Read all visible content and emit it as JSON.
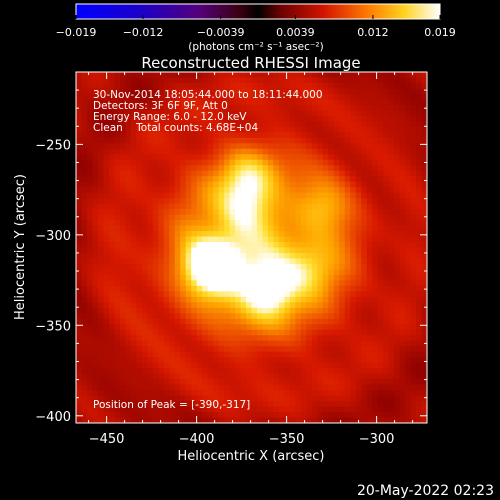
{
  "chart_data": {
    "type": "heatmap",
    "title": "Reconstructed RHESSI Image",
    "xlabel": "Heliocentric X (arcsec)",
    "ylabel": "Heliocentric Y (arcsec)",
    "xlim": [
      -467,
      -272
    ],
    "ylim": [
      -404,
      -210
    ],
    "x_ticks": [
      -450,
      -400,
      -350,
      -300
    ],
    "y_ticks": [
      -250,
      -300,
      -350,
      -400
    ],
    "colorbar": {
      "range": [
        -0.019,
        0.019
      ],
      "ticks": [
        "−0.019",
        "−0.012",
        "−0.0039",
        "0.0039",
        "0.012",
        "0.019"
      ],
      "tick_values": [
        -0.019,
        -0.012,
        -0.0039,
        0.0039,
        0.012,
        0.019
      ],
      "unit_label": "(photons cm⁻² s⁻¹ asec⁻²)",
      "colormap": "std-gamma-II (blue-purple-red-yellow-white)"
    },
    "annotations": {
      "time": "30-Nov-2014 18:05:44.000 to 18:11:44.000",
      "detectors": "Detectors: 3F 6F 9F, Att 0",
      "energy": "Energy Range: 6.0 - 12.0 keV",
      "clean": "Clean    Total counts: 4.68E+04",
      "peak": "Position of Peak = [-390,-317]"
    },
    "sources": [
      {
        "x": -390,
        "y": -317,
        "relative_intensity": 1.0
      },
      {
        "x": -360,
        "y": -330,
        "relative_intensity": 0.72
      },
      {
        "x": -373,
        "y": -285,
        "relative_intensity": 0.48
      },
      {
        "x": -372,
        "y": -268,
        "relative_intensity": 0.38
      },
      {
        "x": -338,
        "y": -318,
        "relative_intensity": 0.42
      },
      {
        "x": -330,
        "y": -285,
        "relative_intensity": 0.32
      }
    ],
    "background_level": 0.33
  },
  "footer": {
    "date": "20-May-2022 02:23"
  }
}
